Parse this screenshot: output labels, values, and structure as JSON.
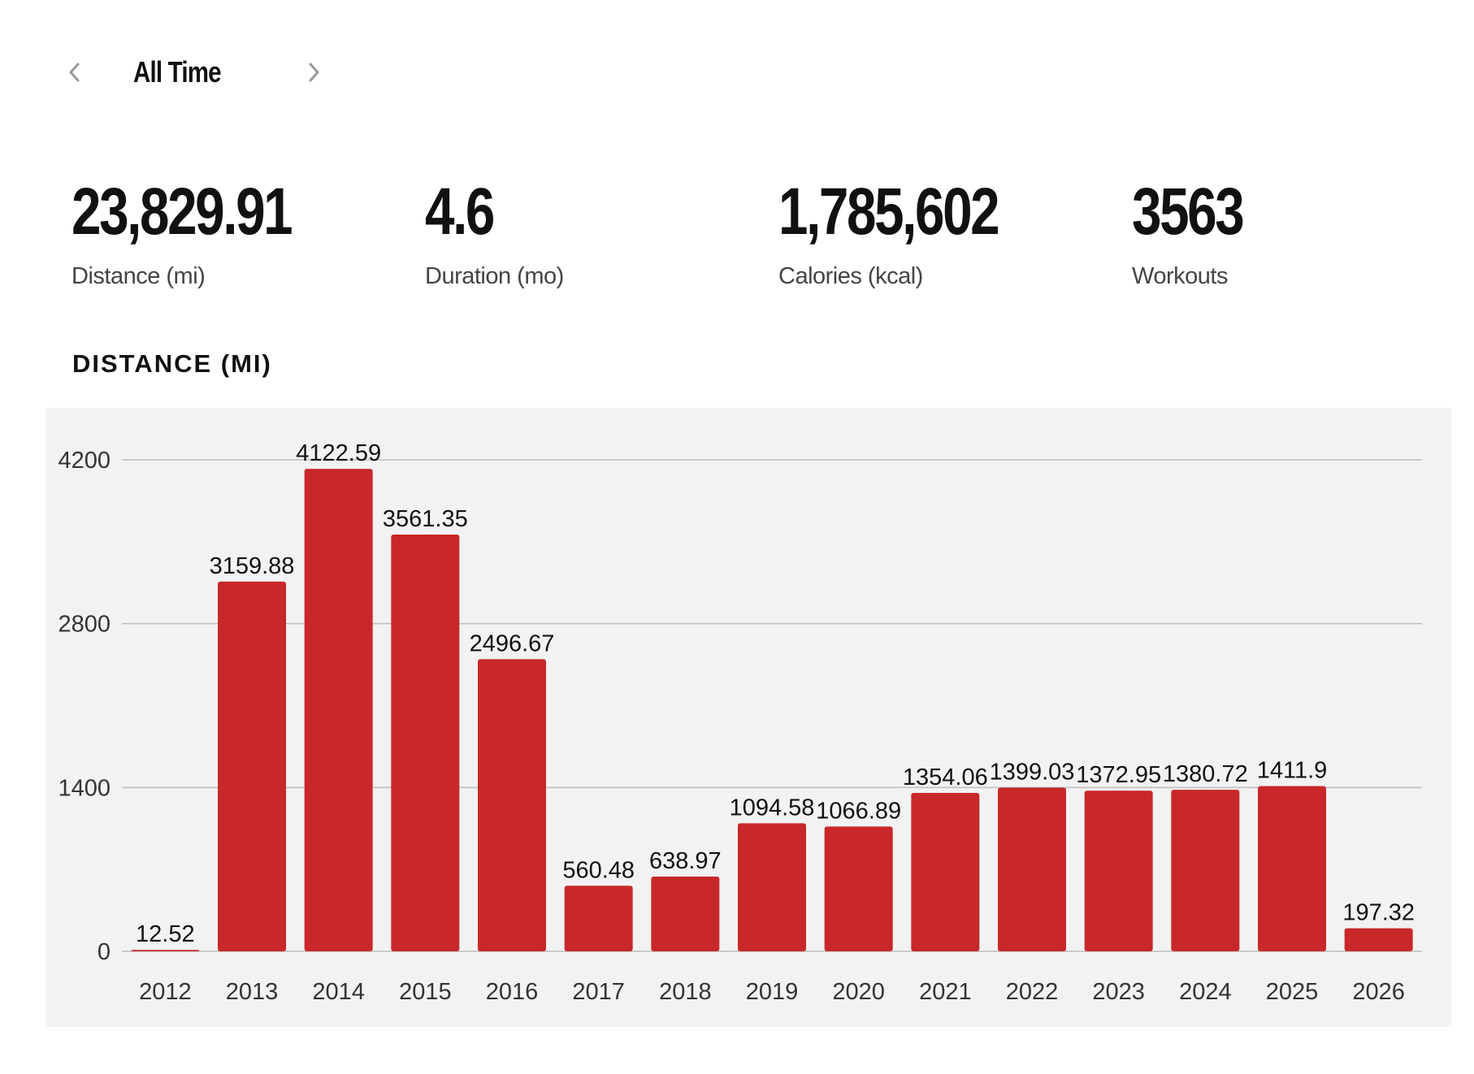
{
  "period": {
    "label": "All Time",
    "prev_icon": "chevron-left-icon",
    "next_icon": "chevron-right-icon"
  },
  "stats": [
    {
      "value": "23,829.91",
      "label": "Distance (mi)"
    },
    {
      "value": "4.6",
      "label": "Duration (mo)"
    },
    {
      "value": "1,785,602",
      "label": "Calories (kcal)"
    },
    {
      "value": "3563",
      "label": "Workouts"
    }
  ],
  "chart_title": "DISTANCE (MI)",
  "colors": {
    "bar": "#c8282a",
    "panel": "#f2f2f2",
    "grid": "#bdbdbd"
  },
  "chart_data": {
    "type": "bar",
    "categories": [
      "2012",
      "2013",
      "2014",
      "2015",
      "2016",
      "2017",
      "2018",
      "2019",
      "2020",
      "2021",
      "2022",
      "2023",
      "2024",
      "2025",
      "2026"
    ],
    "values": [
      12.52,
      3159.88,
      4122.59,
      3561.35,
      2496.67,
      560.48,
      638.97,
      1094.58,
      1066.89,
      1354.06,
      1399.03,
      1372.95,
      1380.72,
      1411.9,
      197.32
    ],
    "value_labels": [
      "12.52",
      "3159.88",
      "4122.59",
      "3561.35",
      "2496.67",
      "560.48",
      "638.97",
      "1094.58",
      "1066.89",
      "1354.06",
      "1399.03",
      "1372.95",
      "1380.72",
      "1411.9",
      "197.32"
    ],
    "yticks": [
      "0",
      "1400",
      "2800",
      "4200"
    ],
    "ylim": [
      0,
      4200
    ],
    "grid": true,
    "title": "DISTANCE (MI)",
    "xlabel": "",
    "ylabel": ""
  }
}
